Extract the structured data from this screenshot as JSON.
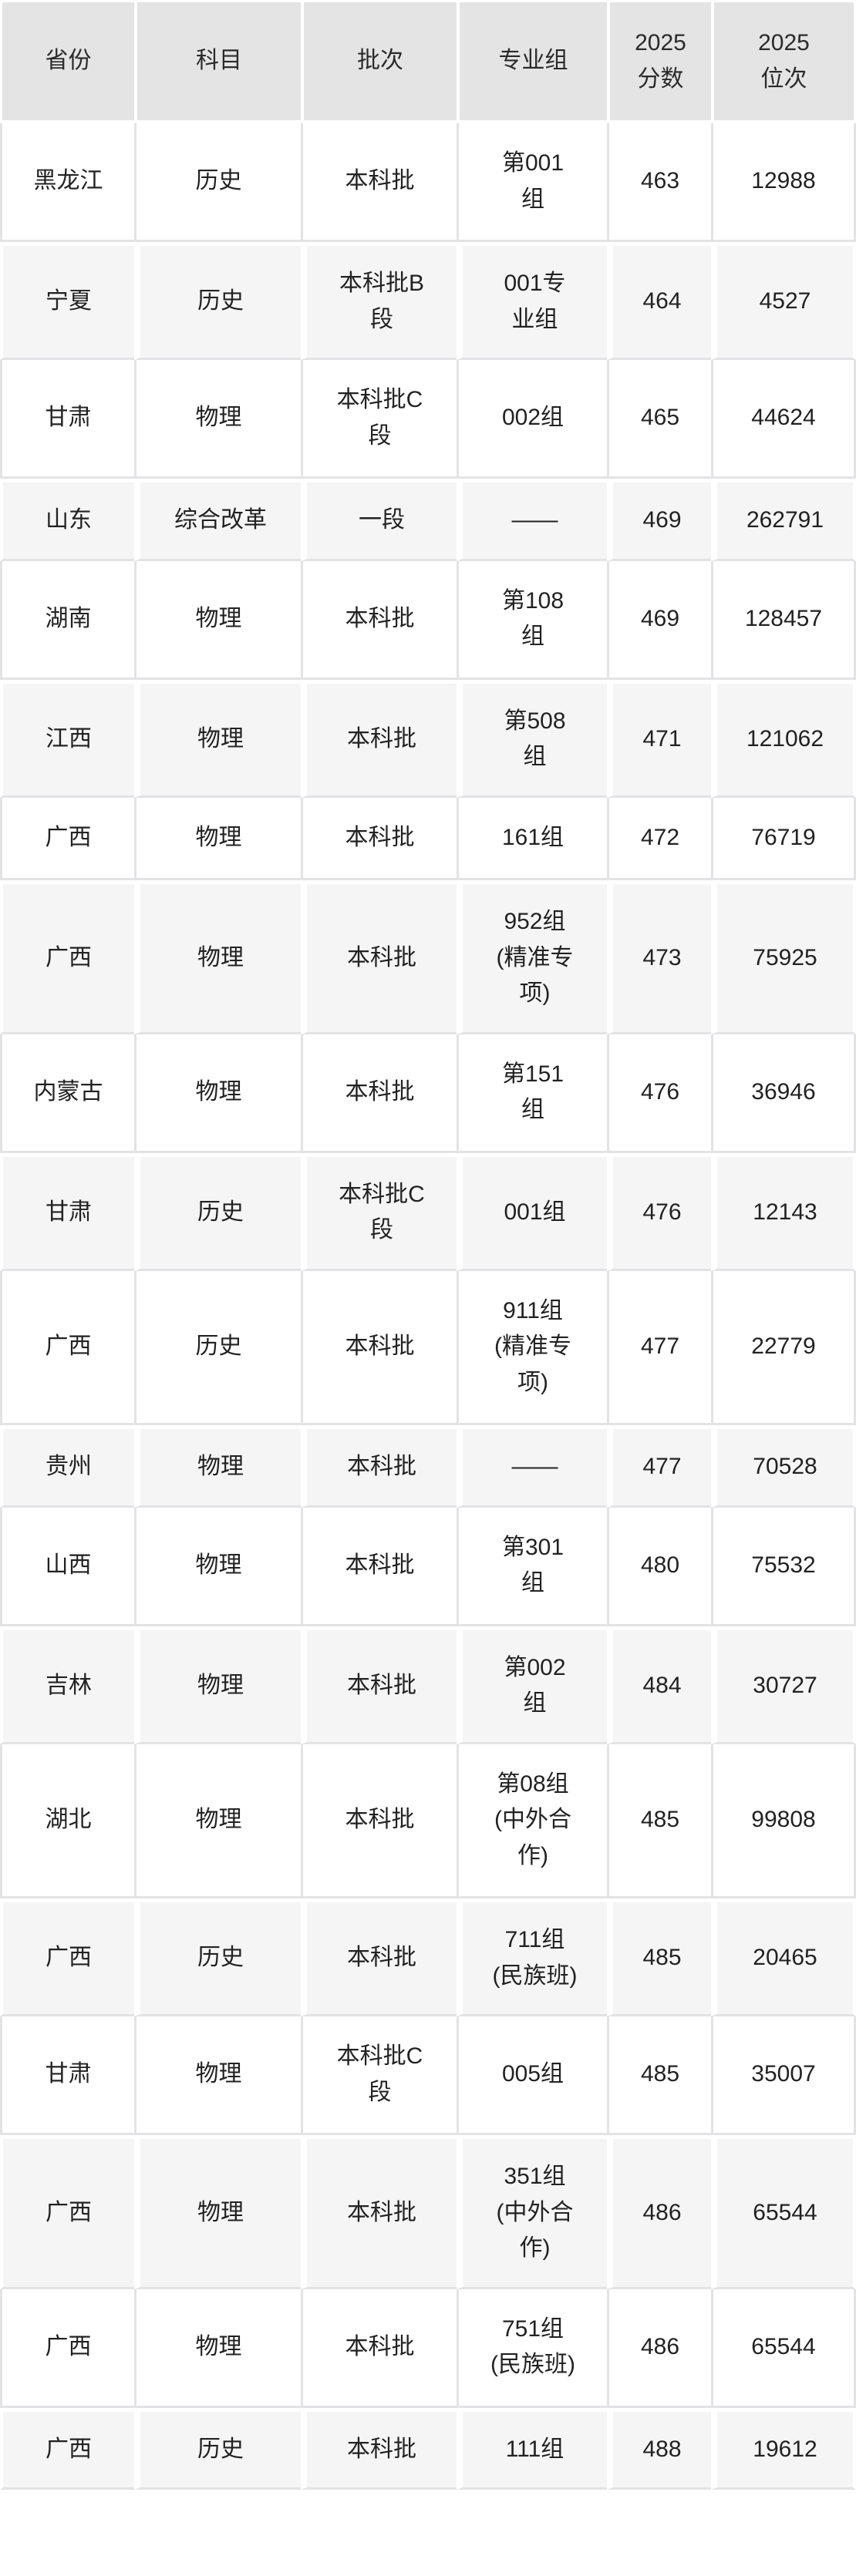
{
  "colors": {
    "header_bg": "#e4e4e4",
    "header_divider": "#ffffff",
    "row_bg": "#ffffff",
    "row_alt_bg": "#f5f5f6",
    "grid_line": "#e3e3e6",
    "text": "#222222"
  },
  "header": {
    "province": "省份",
    "subject": "科目",
    "batch": "批次",
    "group": "专业组",
    "score": "2025\n分数",
    "rank": "2025\n位次"
  },
  "rows": [
    [
      "黑龙江",
      "历史",
      "本科批",
      "第001\n组",
      "463",
      "12988"
    ],
    [
      "宁夏",
      "历史",
      "本科批B\n段",
      "001专\n业组",
      "464",
      "4527"
    ],
    [
      "甘肃",
      "物理",
      "本科批C\n段",
      "002组",
      "465",
      "44624"
    ],
    [
      "山东",
      "综合改革",
      "一段",
      "——",
      "469",
      "262791"
    ],
    [
      "湖南",
      "物理",
      "本科批",
      "第108\n组",
      "469",
      "128457"
    ],
    [
      "江西",
      "物理",
      "本科批",
      "第508\n组",
      "471",
      "121062"
    ],
    [
      "广西",
      "物理",
      "本科批",
      "161组",
      "472",
      "76719"
    ],
    [
      "广西",
      "物理",
      "本科批",
      "952组\n(精准专\n项)",
      "473",
      "75925"
    ],
    [
      "内蒙古",
      "物理",
      "本科批",
      "第151\n组",
      "476",
      "36946"
    ],
    [
      "甘肃",
      "历史",
      "本科批C\n段",
      "001组",
      "476",
      "12143"
    ],
    [
      "广西",
      "历史",
      "本科批",
      "911组\n(精准专\n项)",
      "477",
      "22779"
    ],
    [
      "贵州",
      "物理",
      "本科批",
      "——",
      "477",
      "70528"
    ],
    [
      "山西",
      "物理",
      "本科批",
      "第301\n组",
      "480",
      "75532"
    ],
    [
      "吉林",
      "物理",
      "本科批",
      "第002\n组",
      "484",
      "30727"
    ],
    [
      "湖北",
      "物理",
      "本科批",
      "第08组\n(中外合\n作)",
      "485",
      "99808"
    ],
    [
      "广西",
      "历史",
      "本科批",
      "711组\n(民族班)",
      "485",
      "20465"
    ],
    [
      "甘肃",
      "物理",
      "本科批C\n段",
      "005组",
      "485",
      "35007"
    ],
    [
      "广西",
      "物理",
      "本科批",
      "351组\n(中外合\n作)",
      "486",
      "65544"
    ],
    [
      "广西",
      "物理",
      "本科批",
      "751组\n(民族班)",
      "486",
      "65544"
    ],
    [
      "广西",
      "历史",
      "本科批",
      "111组",
      "488",
      "19612"
    ]
  ]
}
